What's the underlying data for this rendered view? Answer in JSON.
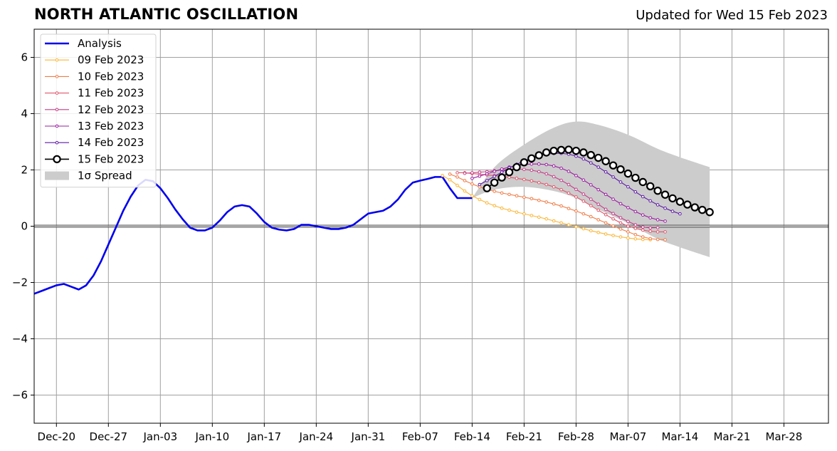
{
  "chart_data": {
    "type": "line",
    "title": "NORTH ATLANTIC OSCILLATION",
    "subtitle": "Updated for Wed 15 Feb 2023",
    "xlabel": "",
    "ylabel": "",
    "ylim": [
      -7,
      7
    ],
    "xlim": [
      "2022-12-17",
      "2023-04-03"
    ],
    "yticks": [
      -6,
      -4,
      -2,
      0,
      2,
      4,
      6
    ],
    "ytick_labels": [
      "−6",
      "−4",
      "−2",
      "0",
      "2",
      "4",
      "6"
    ],
    "xticks": [
      "2022-12-20",
      "2022-12-27",
      "2023-01-03",
      "2023-01-10",
      "2023-01-17",
      "2023-01-24",
      "2023-01-31",
      "2023-02-07",
      "2023-02-14",
      "2023-02-21",
      "2023-02-28",
      "2023-03-07",
      "2023-03-14",
      "2023-03-21",
      "2023-03-28"
    ],
    "xtick_labels": [
      "Dec-20",
      "Dec-27",
      "Jan-03",
      "Jan-10",
      "Jan-17",
      "Jan-24",
      "Jan-31",
      "Feb-07",
      "Feb-14",
      "Feb-21",
      "Feb-28",
      "Mar-07",
      "Mar-14",
      "Mar-21",
      "Mar-28"
    ],
    "grid": true,
    "legend_position": "top-left",
    "analysis": {
      "name": "Analysis",
      "color": "#0000ee",
      "x": [
        "2022-12-17",
        "2022-12-18",
        "2022-12-19",
        "2022-12-20",
        "2022-12-21",
        "2022-12-22",
        "2022-12-23",
        "2022-12-24",
        "2022-12-25",
        "2022-12-26",
        "2022-12-27",
        "2022-12-28",
        "2022-12-29",
        "2022-12-30",
        "2022-12-31",
        "2023-01-01",
        "2023-01-02",
        "2023-01-03",
        "2023-01-04",
        "2023-01-05",
        "2023-01-06",
        "2023-01-07",
        "2023-01-08",
        "2023-01-09",
        "2023-01-10",
        "2023-01-11",
        "2023-01-12",
        "2023-01-13",
        "2023-01-14",
        "2023-01-15",
        "2023-01-16",
        "2023-01-17",
        "2023-01-18",
        "2023-01-19",
        "2023-01-20",
        "2023-01-21",
        "2023-01-22",
        "2023-01-23",
        "2023-01-24",
        "2023-01-25",
        "2023-01-26",
        "2023-01-27",
        "2023-01-28",
        "2023-01-29",
        "2023-01-30",
        "2023-01-31",
        "2023-02-01",
        "2023-02-02",
        "2023-02-03",
        "2023-02-04",
        "2023-02-05",
        "2023-02-06",
        "2023-02-07",
        "2023-02-08",
        "2023-02-09",
        "2023-02-10",
        "2023-02-11",
        "2023-02-12",
        "2023-02-13",
        "2023-02-14"
      ],
      "values": [
        -2.4,
        -2.3,
        -2.2,
        -2.1,
        -2.05,
        -2.15,
        -2.25,
        -2.1,
        -1.75,
        -1.25,
        -0.65,
        -0.05,
        0.55,
        1.05,
        1.45,
        1.65,
        1.6,
        1.35,
        1.0,
        0.6,
        0.25,
        -0.05,
        -0.15,
        -0.15,
        -0.05,
        0.2,
        0.5,
        0.7,
        0.75,
        0.7,
        0.45,
        0.15,
        -0.05,
        -0.12,
        -0.15,
        -0.1,
        0.05,
        0.05,
        0.0,
        -0.05,
        -0.1,
        -0.1,
        -0.05,
        0.05,
        0.25,
        0.45,
        0.5,
        0.55,
        0.7,
        0.95,
        1.3,
        1.55,
        1.62,
        1.68,
        1.75,
        1.75,
        1.35,
        1.0,
        1.0,
        1.0
      ]
    },
    "forecasts": [
      {
        "name": "09 Feb 2023",
        "color": "#fbb535",
        "start": "2023-02-10",
        "values": [
          1.8,
          1.65,
          1.45,
          1.25,
          1.08,
          0.95,
          0.83,
          0.73,
          0.64,
          0.57,
          0.5,
          0.44,
          0.38,
          0.32,
          0.26,
          0.19,
          0.12,
          0.05,
          -0.02,
          -0.09,
          -0.16,
          -0.22,
          -0.28,
          -0.33,
          -0.38,
          -0.42,
          -0.45,
          -0.47,
          -0.48
        ]
      },
      {
        "name": "10 Feb 2023",
        "color": "#f07c47",
        "start": "2023-02-11",
        "values": [
          1.85,
          1.75,
          1.62,
          1.5,
          1.4,
          1.31,
          1.24,
          1.18,
          1.13,
          1.08,
          1.03,
          0.98,
          0.92,
          0.86,
          0.79,
          0.72,
          0.63,
          0.54,
          0.44,
          0.34,
          0.23,
          0.12,
          0.01,
          -0.1,
          -0.2,
          -0.3,
          -0.38,
          -0.44,
          -0.47,
          -0.48
        ]
      },
      {
        "name": "11 Feb 2023",
        "color": "#e0566a",
        "start": "2023-02-12",
        "values": [
          1.9,
          1.9,
          1.87,
          1.85,
          1.82,
          1.8,
          1.77,
          1.74,
          1.7,
          1.66,
          1.61,
          1.55,
          1.48,
          1.4,
          1.3,
          1.18,
          1.04,
          0.89,
          0.73,
          0.57,
          0.41,
          0.26,
          0.12,
          0.0,
          -0.08,
          -0.14,
          -0.18,
          -0.2,
          -0.2
        ]
      },
      {
        "name": "12 Feb 2023",
        "color": "#c43c86",
        "start": "2023-02-13",
        "values": [
          1.88,
          1.9,
          1.92,
          1.94,
          1.97,
          2.0,
          2.02,
          2.03,
          2.02,
          1.99,
          1.94,
          1.86,
          1.76,
          1.63,
          1.48,
          1.31,
          1.14,
          0.96,
          0.78,
          0.6,
          0.45,
          0.3,
          0.17,
          0.05,
          -0.03,
          -0.06,
          -0.05
        ]
      },
      {
        "name": "13 Feb 2023",
        "color": "#9a1da0",
        "start": "2023-02-14",
        "values": [
          1.7,
          1.78,
          1.86,
          1.95,
          2.03,
          2.1,
          2.15,
          2.19,
          2.21,
          2.21,
          2.19,
          2.14,
          2.06,
          1.95,
          1.8,
          1.64,
          1.47,
          1.3,
          1.13,
          0.96,
          0.8,
          0.66,
          0.52,
          0.4,
          0.3,
          0.23,
          0.18
        ]
      },
      {
        "name": "14 Feb 2023",
        "color": "#5c1aa5",
        "start": "2023-02-15",
        "values": [
          1.48,
          1.62,
          1.77,
          1.92,
          2.07,
          2.2,
          2.32,
          2.42,
          2.5,
          2.56,
          2.59,
          2.59,
          2.56,
          2.49,
          2.39,
          2.25,
          2.1,
          1.93,
          1.75,
          1.57,
          1.4,
          1.22,
          1.05,
          0.9,
          0.76,
          0.64,
          0.53,
          0.44
        ]
      },
      {
        "name": "15 Feb 2023",
        "color": "#000000",
        "start": "2023-02-16",
        "values": [
          1.35,
          1.55,
          1.73,
          1.92,
          2.1,
          2.27,
          2.41,
          2.52,
          2.62,
          2.68,
          2.71,
          2.72,
          2.68,
          2.62,
          2.53,
          2.43,
          2.31,
          2.16,
          2.02,
          1.87,
          1.72,
          1.57,
          1.42,
          1.26,
          1.12,
          0.99,
          0.87,
          0.77,
          0.67,
          0.58,
          0.5
        ]
      }
    ],
    "spread": {
      "name": "1σ Spread",
      "color": "#cccccc",
      "x": [
        "2023-02-14",
        "2023-02-17",
        "2023-02-21",
        "2023-02-25",
        "2023-02-28",
        "2023-03-03",
        "2023-03-07",
        "2023-03-11",
        "2023-03-14",
        "2023-03-18"
      ],
      "upper": [
        1.0,
        2.1,
        2.9,
        3.5,
        3.72,
        3.6,
        3.25,
        2.75,
        2.45,
        2.1
      ],
      "lower": [
        1.0,
        1.3,
        1.4,
        1.25,
        1.0,
        0.6,
        0.1,
        -0.45,
        -0.75,
        -1.1
      ]
    }
  },
  "legend": {
    "analysis_label": "Analysis",
    "spread_label": "1σ Spread"
  }
}
